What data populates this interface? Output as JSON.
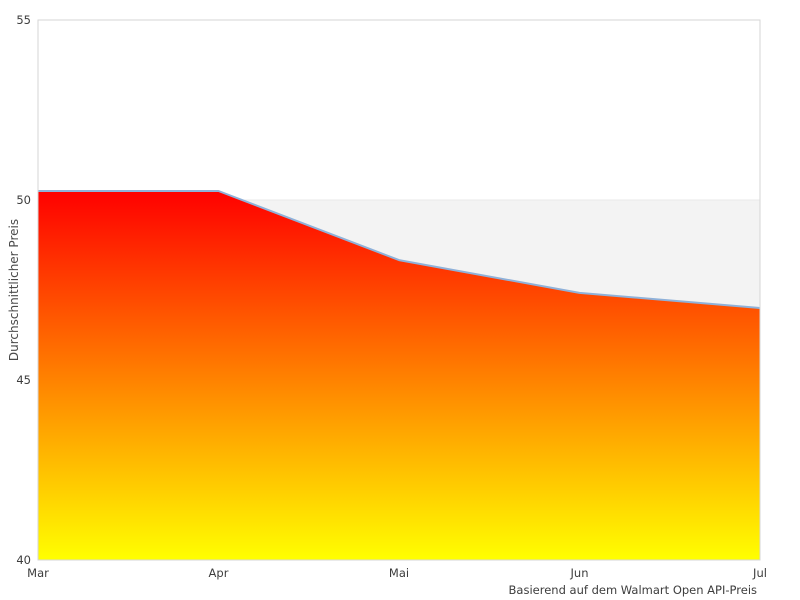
{
  "chart_data": {
    "type": "area",
    "title": "",
    "categories": [
      "Mar",
      "Apr",
      "Mai",
      "Jun",
      "Jul"
    ],
    "values": [
      50.25,
      50.25,
      48.33,
      47.42,
      47.0
    ],
    "series_name": "Durchschnittlicher Preis",
    "xlabel": "",
    "ylabel": "Durchschnittlicher Preis",
    "caption": "Basierend auf dem Walmart Open API-Preis",
    "ylim": [
      40,
      55
    ],
    "yticks": [
      55,
      50,
      45,
      40
    ],
    "reference_band": [
      40,
      50
    ],
    "legend": "none",
    "grid": false,
    "colors": {
      "gradient_top": "#ff0000",
      "gradient_bottom": "#ffff00",
      "line": "#8fb1d9",
      "band_fill": "#f3f3f3",
      "band_edge": "#e8e8e8",
      "plot_border": "#d6d6d6",
      "tick_text": "#3d3d3d",
      "axis_title_text": "#4a4a4a",
      "plot_background": "#ffffff"
    }
  }
}
